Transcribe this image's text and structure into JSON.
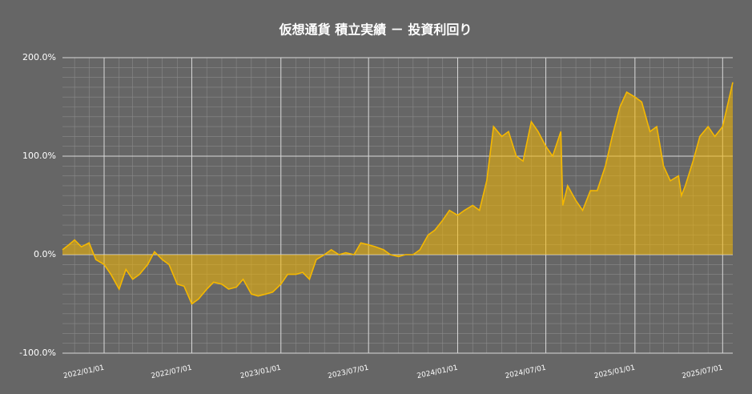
{
  "chart_data": {
    "type": "area",
    "title": "仮想通貨 積立実績 － 投資利回り",
    "color": "#f5b800",
    "background": "#666666",
    "grid": true,
    "y_minor_step": 10,
    "x_minor": "month",
    "xlim": [
      "2021/10/07",
      "2025/07/22"
    ],
    "xticks": [
      "2022/01/01",
      "2022/07/01",
      "2023/01/01",
      "2023/07/01",
      "2024/01/01",
      "2024/07/01",
      "2025/01/01",
      "2025/07/01"
    ],
    "ylim": [
      -100,
      200
    ],
    "yticks": [
      {
        "value": -100,
        "label": "-100.0%"
      },
      {
        "value": 0,
        "label": "0.0%"
      },
      {
        "value": 100,
        "label": "100.0%"
      },
      {
        "value": 200,
        "label": "200.0%"
      }
    ],
    "x": [
      "2021/10/07",
      "2021/10/20",
      "2021/11/01",
      "2021/11/15",
      "2021/12/01",
      "2021/12/15",
      "2022/01/01",
      "2022/01/15",
      "2022/02/01",
      "2022/02/15",
      "2022/03/01",
      "2022/03/15",
      "2022/04/01",
      "2022/04/15",
      "2022/05/01",
      "2022/05/15",
      "2022/06/01",
      "2022/06/15",
      "2022/07/01",
      "2022/07/15",
      "2022/08/01",
      "2022/08/15",
      "2022/09/01",
      "2022/09/15",
      "2022/10/01",
      "2022/10/15",
      "2022/11/01",
      "2022/11/15",
      "2022/12/01",
      "2022/12/15",
      "2023/01/01",
      "2023/01/15",
      "2023/02/01",
      "2023/02/15",
      "2023/03/01",
      "2023/03/15",
      "2023/04/01",
      "2023/04/15",
      "2023/05/01",
      "2023/05/15",
      "2023/06/01",
      "2023/06/15",
      "2023/07/01",
      "2023/07/15",
      "2023/08/01",
      "2023/08/15",
      "2023/09/01",
      "2023/09/15",
      "2023/10/01",
      "2023/10/15",
      "2023/11/01",
      "2023/11/15",
      "2023/12/01",
      "2023/12/15",
      "2024/01/01",
      "2024/01/15",
      "2024/02/01",
      "2024/02/15",
      "2024/03/01",
      "2024/03/15",
      "2024/04/01",
      "2024/04/15",
      "2024/05/01",
      "2024/05/15",
      "2024/06/01",
      "2024/06/15",
      "2024/07/01",
      "2024/07/15",
      "2024/08/01",
      "2024/08/05",
      "2024/08/15",
      "2024/09/01",
      "2024/09/15",
      "2024/10/01",
      "2024/10/15",
      "2024/11/01",
      "2024/11/15",
      "2024/12/01",
      "2024/12/15",
      "2025/01/01",
      "2025/01/15",
      "2025/02/01",
      "2025/02/15",
      "2025/03/01",
      "2025/03/15",
      "2025/04/01",
      "2025/04/07",
      "2025/04/15",
      "2025/05/01",
      "2025/05/15",
      "2025/06/01",
      "2025/06/15",
      "2025/07/01",
      "2025/07/15",
      "2025/07/22"
    ],
    "values": [
      5,
      10,
      15,
      8,
      12,
      -5,
      -10,
      -20,
      -35,
      -15,
      -25,
      -20,
      -10,
      3,
      -5,
      -10,
      -30,
      -32,
      -50,
      -45,
      -35,
      -28,
      -30,
      -35,
      -33,
      -25,
      -40,
      -42,
      -40,
      -38,
      -30,
      -20,
      -20,
      -18,
      -25,
      -5,
      0,
      5,
      0,
      2,
      0,
      12,
      10,
      8,
      5,
      0,
      -2,
      0,
      0,
      5,
      20,
      25,
      35,
      45,
      40,
      45,
      50,
      45,
      75,
      130,
      120,
      125,
      100,
      95,
      135,
      125,
      110,
      100,
      125,
      50,
      70,
      55,
      45,
      65,
      65,
      90,
      120,
      150,
      165,
      160,
      155,
      125,
      130,
      90,
      75,
      80,
      60,
      70,
      95,
      120,
      130,
      120,
      130,
      160,
      175
    ]
  }
}
